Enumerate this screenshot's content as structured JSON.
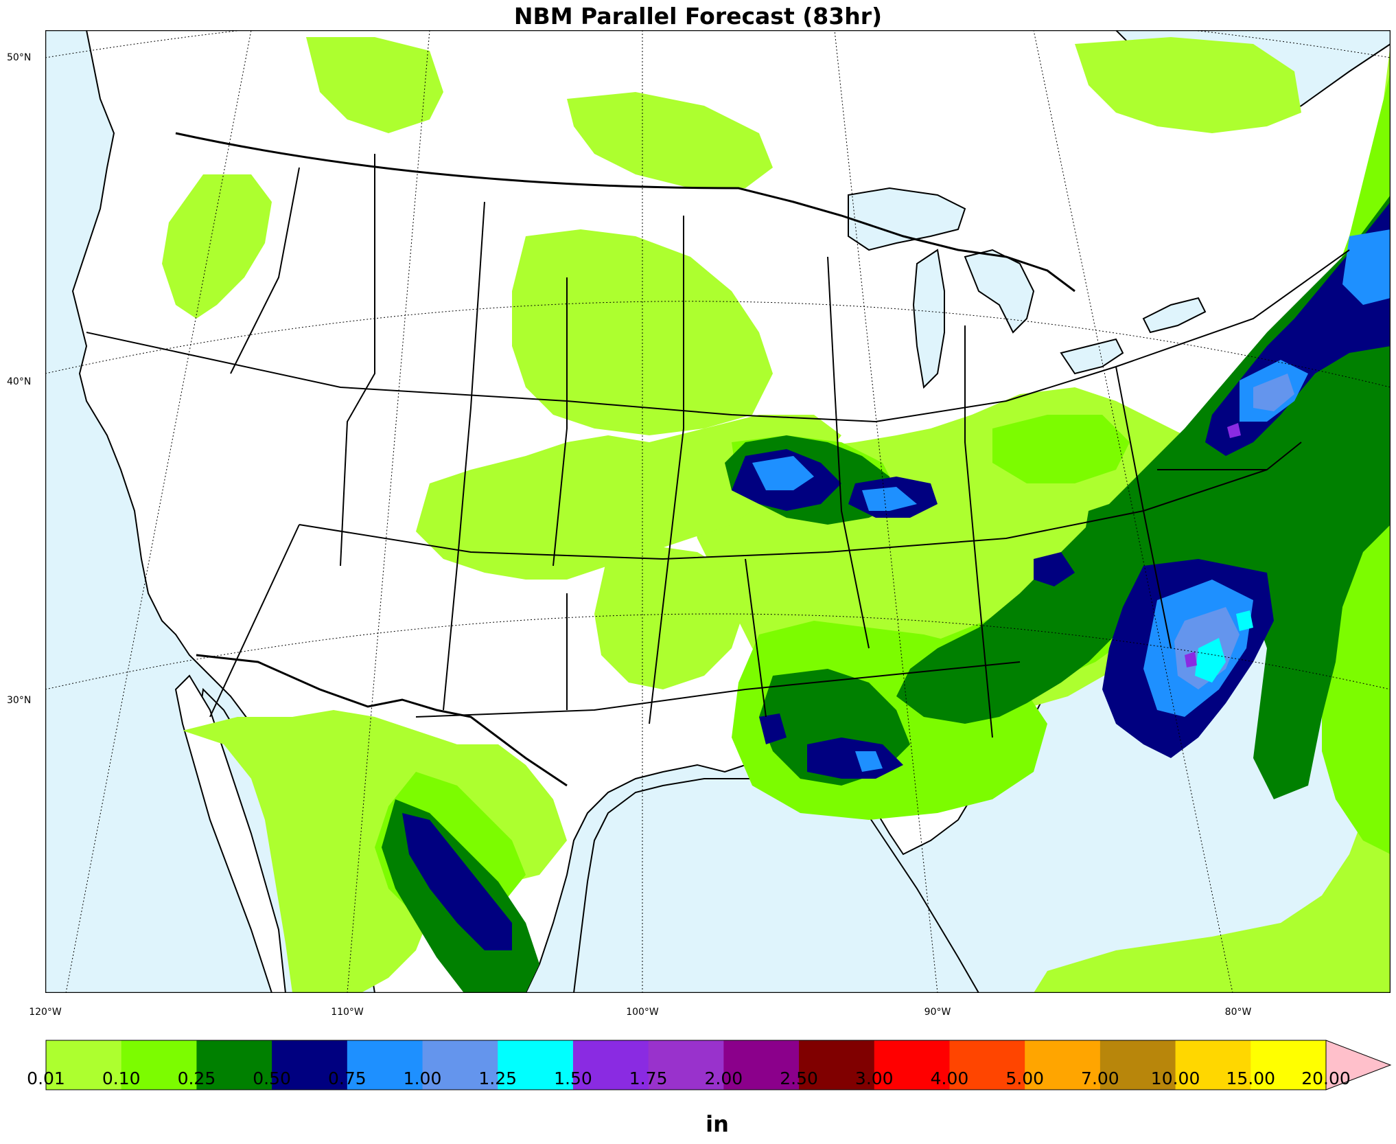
{
  "title": "NBM Parallel Forecast (83hr)",
  "map": {
    "ocean_color": "#dff4fc",
    "land_color": "#ffffff",
    "lat_labels": [
      "50°N",
      "40°N",
      "30°N"
    ],
    "lon_labels": [
      "120°W",
      "110°W",
      "100°W",
      "90°W",
      "80°W"
    ]
  },
  "colorbar": {
    "unit": "in",
    "ticks": [
      "0.01",
      "0.10",
      "0.25",
      "0.50",
      "0.75",
      "1.00",
      "1.25",
      "1.50",
      "1.75",
      "2.00",
      "2.50",
      "3.00",
      "4.00",
      "5.00",
      "7.00",
      "10.00",
      "15.00",
      "20.00"
    ],
    "colors": [
      "#adff2f",
      "#7cfc00",
      "#008000",
      "#000080",
      "#1e90ff",
      "#6495ed",
      "#00ffff",
      "#8a2be2",
      "#9932cc",
      "#8b008b",
      "#800000",
      "#ff0000",
      "#ff4500",
      "#ffa500",
      "#b8860b",
      "#ffd700",
      "#ffff00"
    ],
    "extend_color": "#ffc0cb"
  }
}
